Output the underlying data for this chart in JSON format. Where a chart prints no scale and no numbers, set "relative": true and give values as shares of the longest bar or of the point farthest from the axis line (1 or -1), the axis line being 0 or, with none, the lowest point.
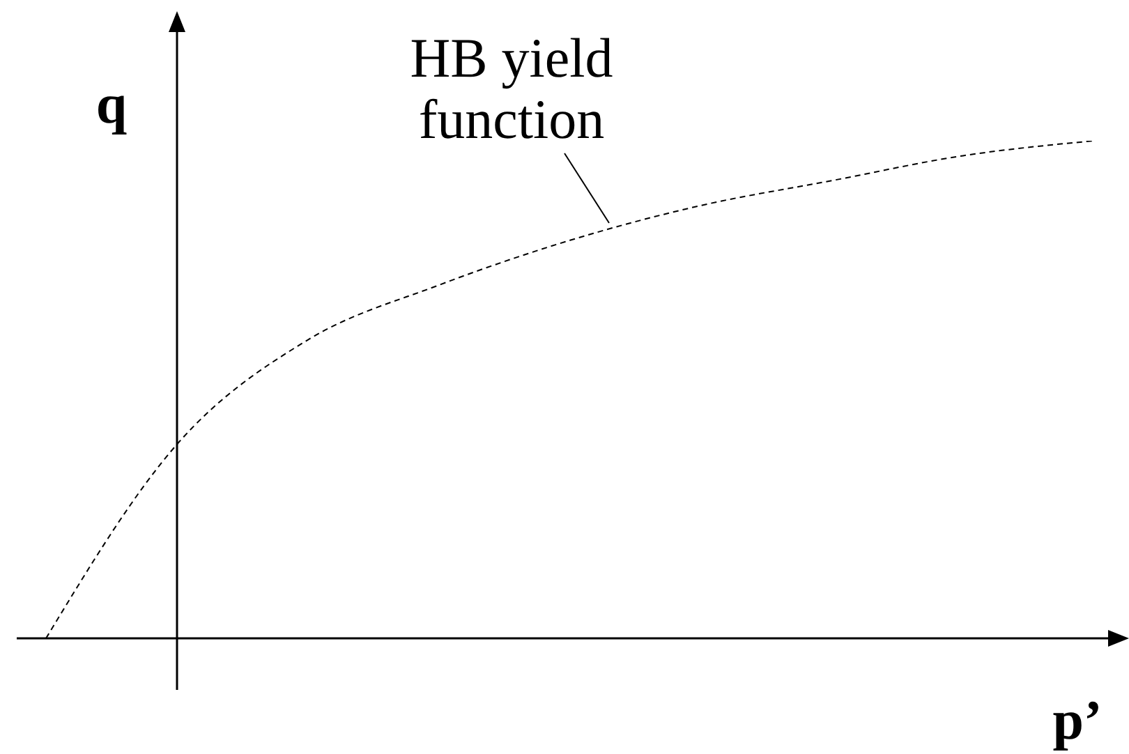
{
  "chart_data": {
    "type": "line",
    "relative": true,
    "xlabel": "p’",
    "ylabel": "q",
    "annotations": [
      "HB yield function"
    ],
    "categories": [
      null,
      null,
      null,
      null,
      null,
      null,
      null,
      null,
      null
    ],
    "values": [
      0,
      0.39,
      0.6,
      0.71,
      0.8,
      0.87,
      0.92,
      0.97,
      1
    ],
    "color": "#000000",
    "line_style": "dashed",
    "marker": "none"
  }
}
